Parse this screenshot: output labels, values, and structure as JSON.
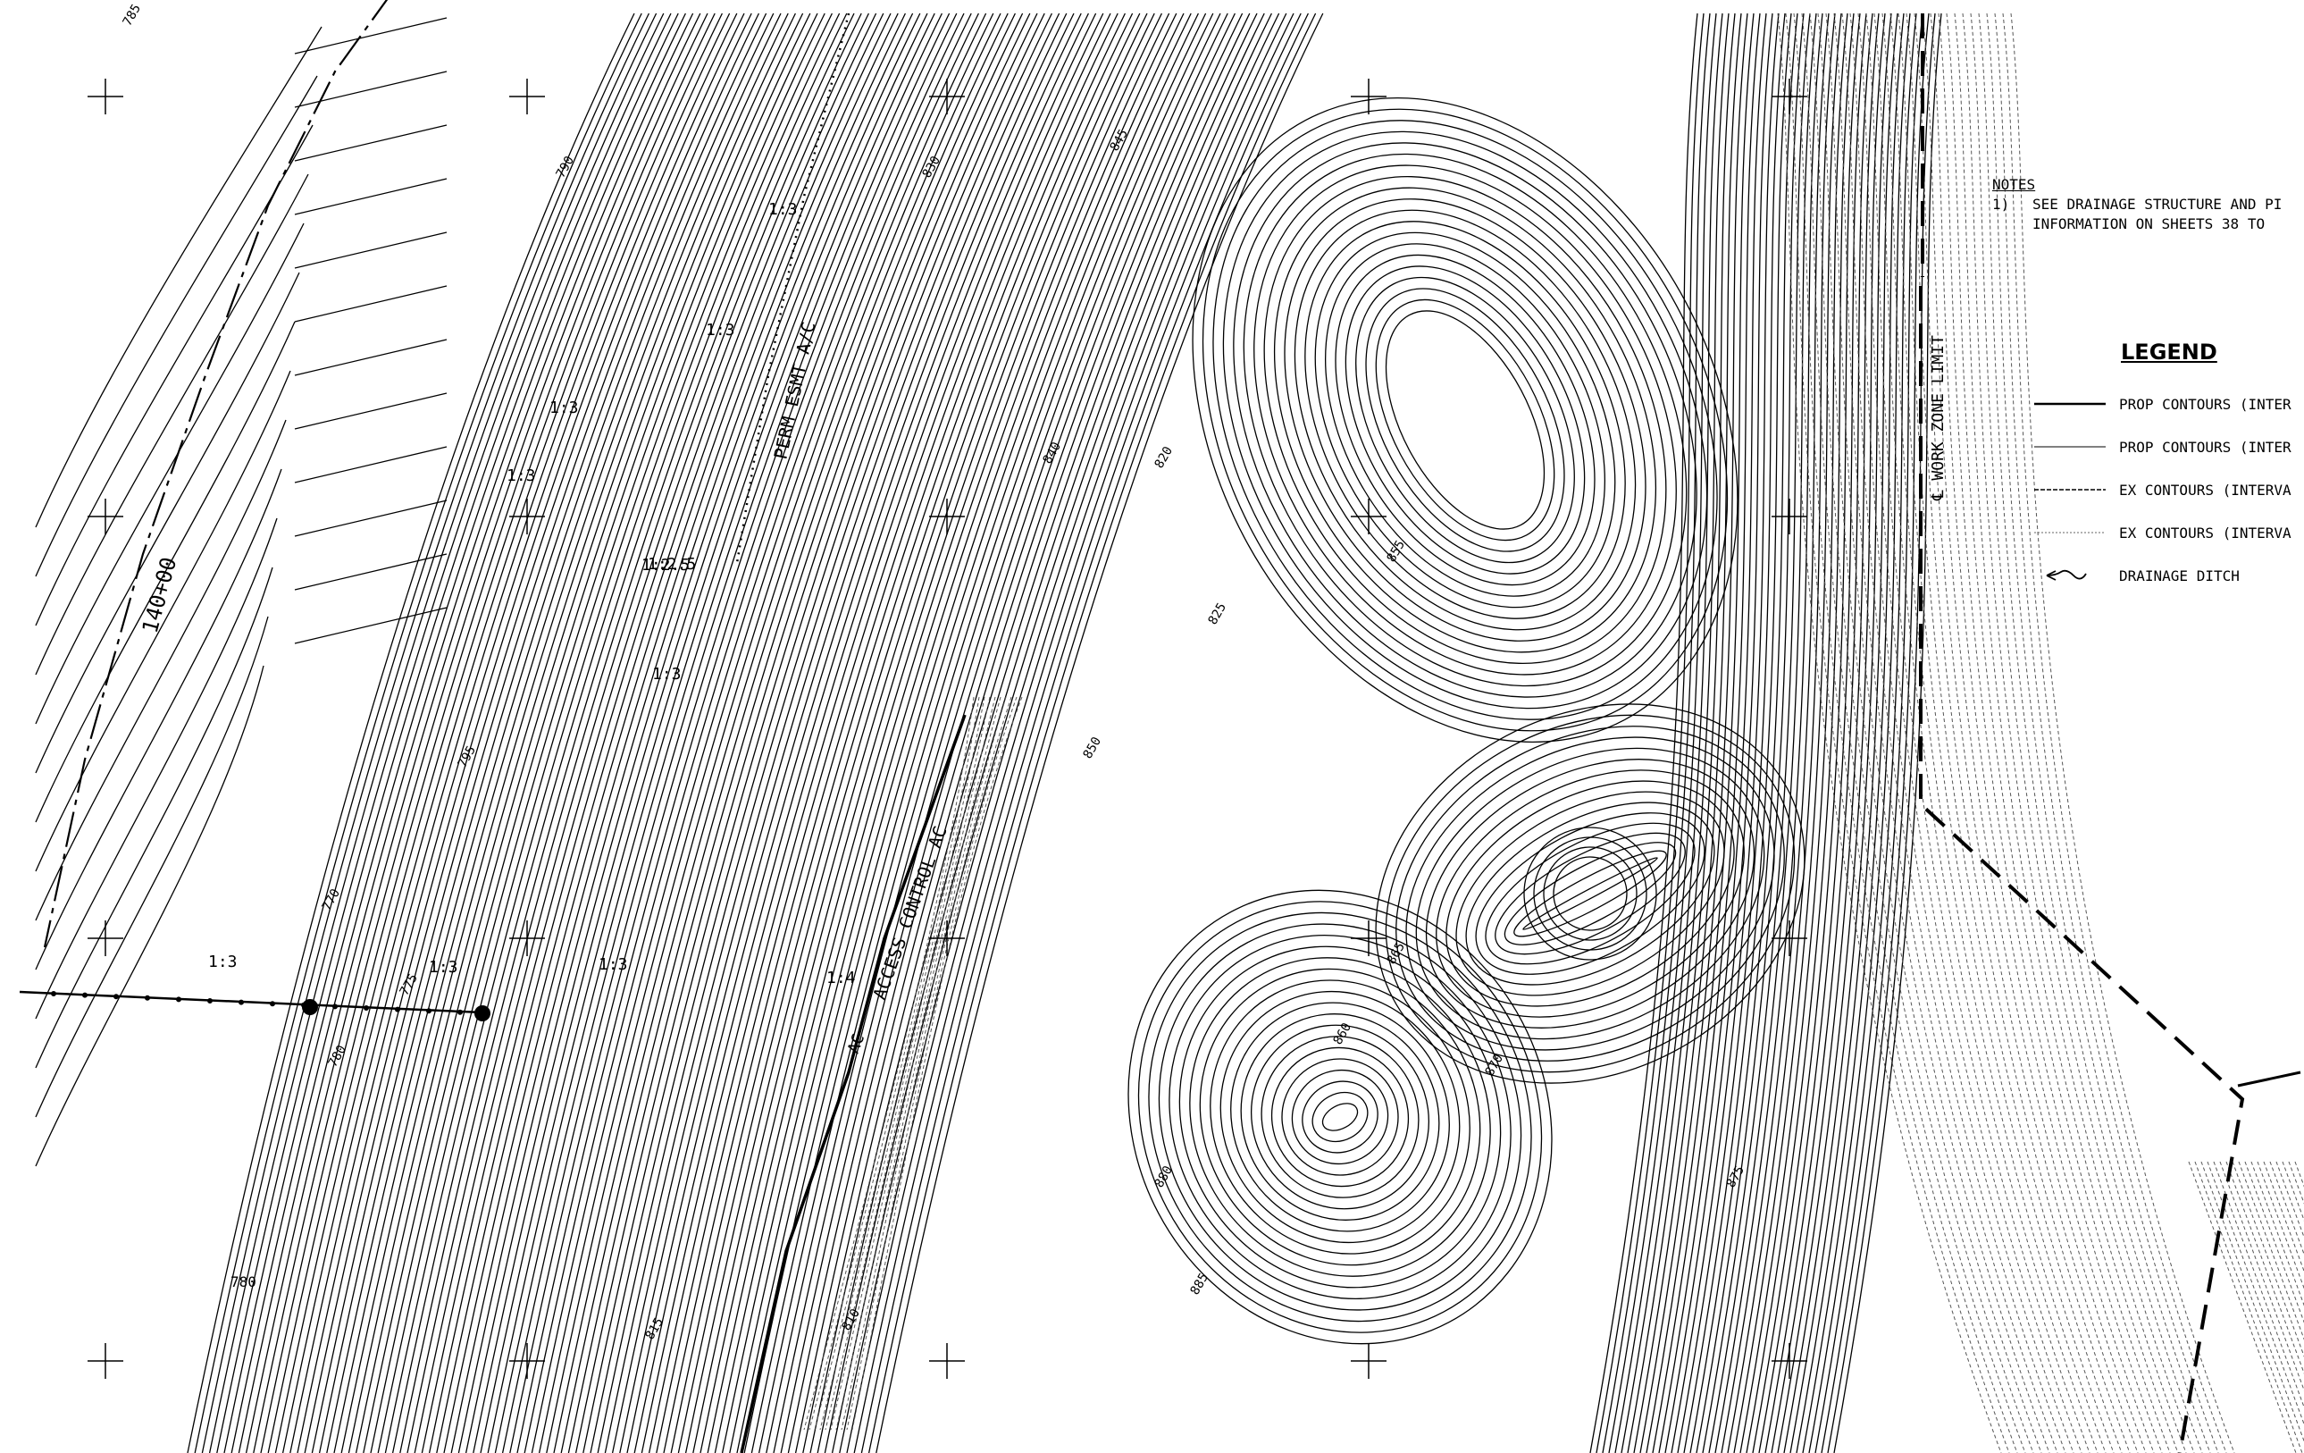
{
  "map": {
    "alignment_station": "140+00",
    "easement_label": "PERM ESMT A/C",
    "access_control_label": "ACCESS CONTROL AC",
    "ac_label": "AC",
    "work_zone_label": "℄ WORK ZONE LIMIT",
    "slopes": [
      "1:3",
      "1:3",
      "1:3",
      "1:2.5",
      "1:3",
      "1:2.5",
      "1:3",
      "1:3",
      "1:4",
      "1:3",
      "1:3"
    ],
    "spot_label": "780",
    "contour_labels": [
      "785",
      "780",
      "775",
      "770",
      "795",
      "790",
      "810",
      "815",
      "820",
      "825",
      "830",
      "840",
      "845",
      "850",
      "855",
      "860",
      "865",
      "870",
      "875",
      "880",
      "885"
    ]
  },
  "notes": {
    "heading": "NOTES",
    "items": [
      {
        "num": "1)",
        "line1": "SEE DRAINAGE STRUCTURE AND PI",
        "line2": "INFORMATION ON SHEETS 38   TO"
      }
    ]
  },
  "legend": {
    "title": "LEGEND",
    "items": [
      {
        "label": "PROP CONTOURS (INTER",
        "symbol": "prop-major-line-icon"
      },
      {
        "label": "PROP CONTOURS (INTER",
        "symbol": "prop-minor-line-icon"
      },
      {
        "label": "EX CONTOURS (INTERVA",
        "symbol": "ex-major-dashed-icon"
      },
      {
        "label": "EX CONTOURS (INTERVA",
        "symbol": "ex-minor-dotted-icon"
      },
      {
        "label": "DRAINAGE DITCH",
        "symbol": "drainage-ditch-arrow-icon"
      }
    ]
  }
}
